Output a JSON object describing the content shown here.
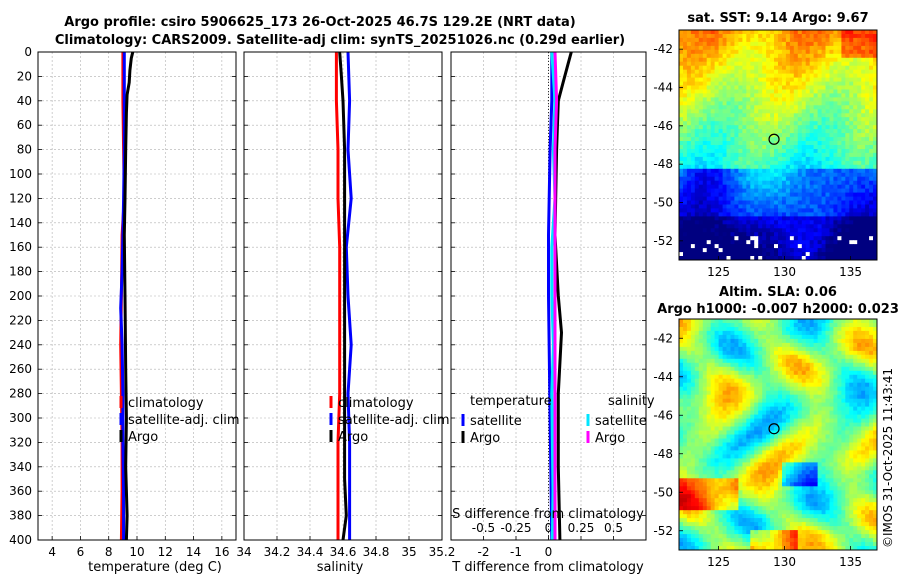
{
  "title": {
    "line1": "Argo profile: csiro 5906625_173 26-Oct-2025 46.7S 129.2E (NRT data)",
    "line2": "Climatology: CARS2009. Satellite-adj clim: synTS_20251026.nc (0.29d earlier)"
  },
  "watermark": "©IMOS 31-Oct-2025 11:43:41",
  "depth_ticks": [
    "0",
    "20",
    "40",
    "60",
    "80",
    "100",
    "120",
    "140",
    "160",
    "180",
    "200",
    "220",
    "240",
    "260",
    "280",
    "300",
    "320",
    "340",
    "360",
    "380",
    "400"
  ],
  "chart_data": [
    {
      "type": "line",
      "name": "temperature",
      "xlabel": "temperature (deg C)",
      "ylabel": "depth",
      "xlim": [
        3,
        17
      ],
      "ylim": [
        400,
        0
      ],
      "xticks": [
        4,
        6,
        8,
        10,
        12,
        14,
        16
      ],
      "xtick_labels": [
        "4",
        "6",
        "8",
        "10",
        "12",
        "14",
        "16"
      ],
      "legend": [
        "climatology",
        "satellite-adj. clim",
        "Argo"
      ],
      "series": [
        {
          "name": "climatology",
          "color": "#ff0000",
          "points": [
            [
              9.0,
              0
            ],
            [
              9.0,
              40
            ],
            [
              9.05,
              80
            ],
            [
              9.1,
              120
            ],
            [
              8.95,
              150
            ],
            [
              8.9,
              200
            ],
            [
              8.85,
              240
            ],
            [
              8.9,
              280
            ],
            [
              8.95,
              320
            ],
            [
              8.95,
              360
            ],
            [
              8.9,
              400
            ]
          ]
        },
        {
          "name": "satellite-adj. clim",
          "color": "#0000ff",
          "points": [
            [
              9.1,
              0
            ],
            [
              9.1,
              40
            ],
            [
              9.1,
              80
            ],
            [
              9.05,
              120
            ],
            [
              9.0,
              150
            ],
            [
              8.95,
              180
            ],
            [
              8.85,
              210
            ],
            [
              8.95,
              240
            ],
            [
              9.0,
              280
            ],
            [
              9.0,
              320
            ],
            [
              9.05,
              360
            ],
            [
              9.05,
              400
            ]
          ]
        },
        {
          "name": "Argo",
          "color": "#000000",
          "points": [
            [
              9.7,
              0
            ],
            [
              9.6,
              5
            ],
            [
              9.55,
              10
            ],
            [
              9.5,
              15
            ],
            [
              9.45,
              25
            ],
            [
              9.3,
              35
            ],
            [
              9.25,
              50
            ],
            [
              9.2,
              80
            ],
            [
              9.15,
              120
            ],
            [
              9.1,
              150
            ],
            [
              9.15,
              200
            ],
            [
              9.2,
              260
            ],
            [
              9.25,
              300
            ],
            [
              9.2,
              340
            ],
            [
              9.3,
              380
            ],
            [
              9.25,
              400
            ]
          ]
        }
      ]
    },
    {
      "type": "line",
      "name": "salinity",
      "xlabel": "salinity",
      "xlim": [
        34.0,
        35.2
      ],
      "ylim": [
        400,
        0
      ],
      "xticks": [
        34.0,
        34.2,
        34.4,
        34.6,
        34.8,
        35.0,
        35.2
      ],
      "xtick_labels": [
        "34",
        "34.2",
        "34.4",
        "34.6",
        "34.8",
        "35",
        "35.2"
      ],
      "legend": [
        "climatology",
        "satellite-adj. clim",
        "Argo"
      ],
      "series": [
        {
          "name": "climatology",
          "color": "#ff0000",
          "points": [
            [
              34.56,
              0
            ],
            [
              34.56,
              40
            ],
            [
              34.57,
              80
            ],
            [
              34.57,
              120
            ],
            [
              34.58,
              160
            ],
            [
              34.58,
              200
            ],
            [
              34.58,
              240
            ],
            [
              34.58,
              280
            ],
            [
              34.57,
              320
            ],
            [
              34.57,
              360
            ],
            [
              34.57,
              400
            ]
          ]
        },
        {
          "name": "satellite-adj. clim",
          "color": "#0000ff",
          "points": [
            [
              34.63,
              0
            ],
            [
              34.64,
              40
            ],
            [
              34.63,
              80
            ],
            [
              34.65,
              120
            ],
            [
              34.62,
              160
            ],
            [
              34.63,
              200
            ],
            [
              34.65,
              240
            ],
            [
              34.63,
              280
            ],
            [
              34.64,
              320
            ],
            [
              34.64,
              360
            ],
            [
              34.64,
              400
            ]
          ]
        },
        {
          "name": "Argo",
          "color": "#000000",
          "points": [
            [
              34.58,
              0
            ],
            [
              34.59,
              20
            ],
            [
              34.6,
              40
            ],
            [
              34.61,
              80
            ],
            [
              34.61,
              150
            ],
            [
              34.61,
              200
            ],
            [
              34.61,
              240
            ],
            [
              34.61,
              300
            ],
            [
              34.61,
              350
            ],
            [
              34.62,
              380
            ],
            [
              34.6,
              400
            ]
          ]
        }
      ]
    },
    {
      "type": "line",
      "name": "difference",
      "xlabel": "T difference from climatology",
      "xlabel_top": "S difference from climatology",
      "xlim": [
        -3,
        3
      ],
      "ylim": [
        400,
        0
      ],
      "xticks": [
        -2,
        -1,
        0,
        1,
        2
      ],
      "xtick_labels": [
        "-2",
        "-1",
        "0",
        "1",
        "2"
      ],
      "s_ticks": [
        -0.5,
        -0.25,
        0,
        0.25,
        0.5
      ],
      "s_tick_labels": [
        "-0.5",
        "-0.25",
        "0",
        "0.25",
        "0.5"
      ],
      "legend_headers": [
        "temperature",
        "salinity"
      ],
      "legend": [
        "satellite",
        "Argo",
        "satellite",
        "Argo"
      ],
      "series": [
        {
          "name": "temperature satellite",
          "color": "#0000ff",
          "points": [
            [
              0.1,
              0
            ],
            [
              0.1,
              40
            ],
            [
              0.05,
              80
            ],
            [
              0.0,
              150
            ],
            [
              0.0,
              200
            ],
            [
              0.05,
              300
            ],
            [
              0.1,
              400
            ]
          ]
        },
        {
          "name": "temperature Argo",
          "color": "#000000",
          "points": [
            [
              0.7,
              0
            ],
            [
              0.6,
              10
            ],
            [
              0.45,
              25
            ],
            [
              0.3,
              40
            ],
            [
              0.25,
              80
            ],
            [
              0.2,
              150
            ],
            [
              0.3,
              200
            ],
            [
              0.4,
              230
            ],
            [
              0.3,
              280
            ],
            [
              0.3,
              340
            ],
            [
              0.35,
              400
            ]
          ]
        },
        {
          "name": "salinity satellite",
          "color": "#00e5ff",
          "points": [
            [
              0.1,
              0
            ],
            [
              0.2,
              40
            ],
            [
              0.15,
              80
            ],
            [
              0.2,
              120
            ],
            [
              0.1,
              160
            ],
            [
              0.1,
              200
            ],
            [
              0.15,
              240
            ],
            [
              0.1,
              280
            ],
            [
              0.12,
              320
            ],
            [
              0.14,
              360
            ],
            [
              0.12,
              400
            ]
          ]
        },
        {
          "name": "salinity Argo",
          "color": "#ff00ff",
          "points": [
            [
              0.2,
              0
            ],
            [
              0.25,
              40
            ],
            [
              0.2,
              80
            ],
            [
              0.2,
              120
            ],
            [
              0.2,
              160
            ],
            [
              0.2,
              200
            ],
            [
              0.2,
              240
            ],
            [
              0.2,
              280
            ],
            [
              0.2,
              320
            ],
            [
              0.2,
              360
            ],
            [
              0.2,
              400
            ]
          ]
        }
      ]
    },
    {
      "type": "heatmap",
      "name": "sst-map",
      "title": "sat. SST: 9.14 Argo: 9.67",
      "xlim": [
        122,
        137
      ],
      "ylim": [
        -53,
        -41
      ],
      "xticks": [
        125,
        130,
        135
      ],
      "xtick_labels": [
        "125",
        "130",
        "135"
      ],
      "yticks": [
        -42,
        -44,
        -46,
        -48,
        -50,
        -52
      ],
      "ytick_labels": [
        "-42",
        "-44",
        "-46",
        "-48",
        "-50",
        "-52"
      ],
      "marker": [
        129.2,
        -46.7
      ]
    },
    {
      "type": "heatmap",
      "name": "sla-map",
      "title1": "Altim. SLA: 0.06",
      "title2": "Argo h1000: -0.007 h2000: 0.023",
      "xlim": [
        122,
        137
      ],
      "ylim": [
        -53,
        -41
      ],
      "xticks": [
        125,
        130,
        135
      ],
      "xtick_labels": [
        "125",
        "130",
        "135"
      ],
      "yticks": [
        -42,
        -44,
        -46,
        -48,
        -50,
        -52
      ],
      "ytick_labels": [
        "-42",
        "-44",
        "-46",
        "-48",
        "-50",
        "-52"
      ],
      "marker": [
        129.2,
        -46.7
      ]
    }
  ]
}
